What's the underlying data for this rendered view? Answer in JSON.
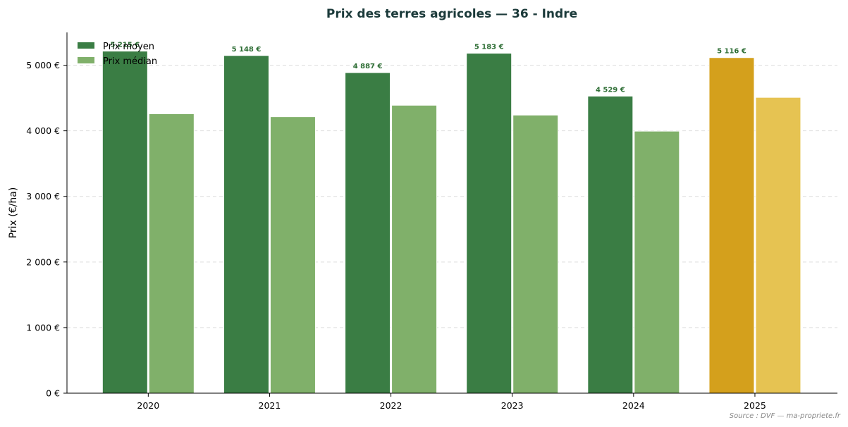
{
  "chart_data": {
    "type": "bar",
    "title": "Prix des terres agricoles — 36 - Indre",
    "ylabel": "Prix (€/ha)",
    "xlabel": "",
    "categories": [
      "2020",
      "2021",
      "2022",
      "2023",
      "2024",
      "2025"
    ],
    "series": [
      {
        "name": "Prix moyen",
        "values": [
          5215,
          5148,
          4887,
          5183,
          4529,
          5116
        ],
        "labels": [
          "5 215 €",
          "5 148 €",
          "4 887 €",
          "5 183 €",
          "4 529 €",
          "5 116 €"
        ],
        "color": "#3a7d44",
        "highlight_color": "#d4a01c"
      },
      {
        "name": "Prix médian",
        "values": [
          4260,
          4215,
          4390,
          4240,
          3995,
          4510
        ],
        "color": "#80b06a",
        "highlight_color": "#e6c352"
      }
    ],
    "highlight_category": "2025",
    "ylim": [
      0,
      5500
    ],
    "yticks": [
      0,
      1000,
      2000,
      3000,
      4000,
      5000
    ],
    "ytick_labels": [
      "0 €",
      "1 000 €",
      "2 000 €",
      "3 000 €",
      "4 000 €",
      "5 000 €"
    ],
    "grid": "horizontal dashed",
    "legend_position": "top-left",
    "label_color": "#2e6e35"
  },
  "source": "Source : DVF — ma-propriete.fr"
}
